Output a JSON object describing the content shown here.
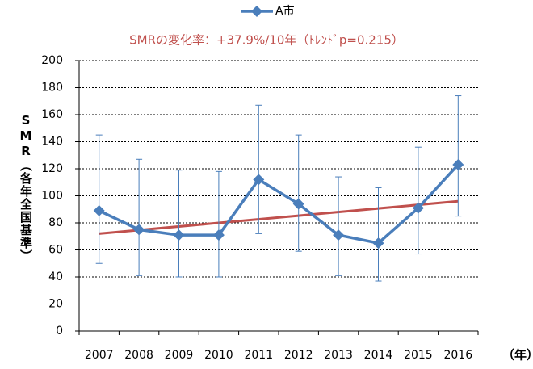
{
  "chart_data": {
    "type": "line",
    "annotation": "SMRの変化率：+37.9%/10年（ﾄﾚﾝﾄﾞp=0.215）",
    "y_label": "SMR（各年全国基準）",
    "x_label": "（年）",
    "categories": [
      "2007",
      "2008",
      "2009",
      "2010",
      "2011",
      "2012",
      "2013",
      "2014",
      "2015",
      "2016"
    ],
    "series": [
      {
        "name": "A市",
        "color": "#4a7ebb",
        "values": [
          89,
          75,
          71,
          71,
          112,
          94,
          71,
          65,
          91,
          123
        ],
        "upper": [
          145,
          127,
          119,
          118,
          167,
          145,
          114,
          106,
          136,
          174
        ],
        "lower": [
          50,
          41,
          40,
          40,
          72,
          59,
          41,
          37,
          57,
          85
        ]
      }
    ],
    "trend": {
      "color": "#c0504d",
      "values": [
        72,
        96
      ]
    },
    "ylim": [
      0,
      200
    ],
    "yticks": [
      0,
      20,
      40,
      60,
      80,
      100,
      120,
      140,
      160,
      180,
      200
    ],
    "grid": true,
    "legend": "top"
  }
}
